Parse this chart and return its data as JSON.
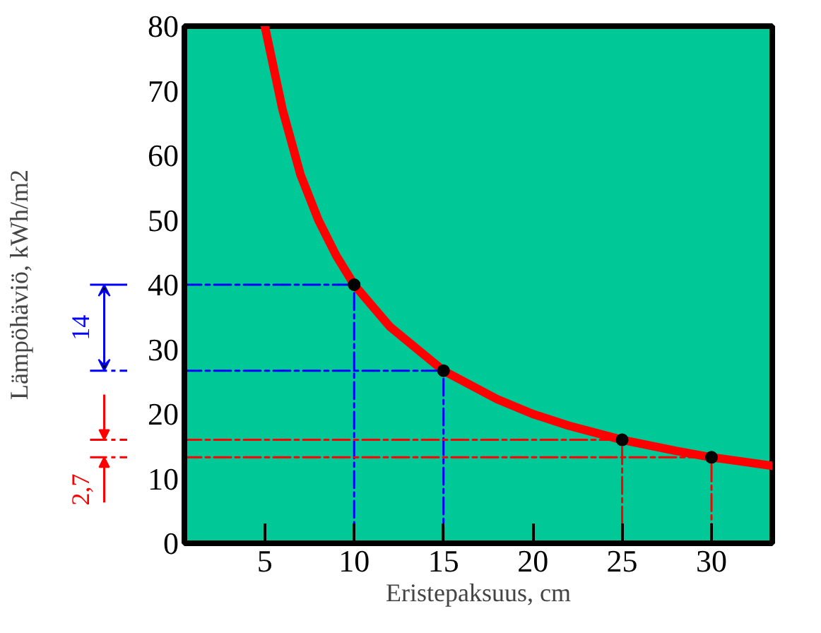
{
  "chart_data": {
    "type": "line",
    "xlabel": "Eristepaksuus, cm",
    "ylabel": "Lämpöhäviö, kWh/m2",
    "xlim": [
      0.5,
      33.4
    ],
    "ylim": [
      0,
      80
    ],
    "xticks": [
      5,
      10,
      15,
      20,
      25,
      30
    ],
    "yticks": [
      0,
      10,
      20,
      30,
      40,
      50,
      60,
      70,
      80
    ],
    "grid": false,
    "series": [
      {
        "color": "#ff0000",
        "marker": "none",
        "x": [
          5,
          6,
          7,
          8,
          9,
          10,
          12,
          15,
          18,
          20,
          22,
          25,
          28,
          30,
          33.4
        ],
        "values": [
          80,
          67,
          57,
          50,
          44.5,
          40,
          33.5,
          26.7,
          22.3,
          20,
          18.2,
          16,
          14.3,
          13.3,
          12
        ]
      },
      {
        "type": "line",
        "color": "#0000ff",
        "line_style": "dashed",
        "x": [
          0.5,
          10,
          10
        ],
        "values": [
          40,
          40,
          0
        ]
      },
      {
        "type": "line",
        "color": "#0000ff",
        "line_style": "dashed",
        "x": [
          0.5,
          15,
          15
        ],
        "values": [
          26.7,
          26.7,
          0
        ]
      },
      {
        "type": "line",
        "color": "#ff0000",
        "line_style": "dashed",
        "x": [
          0.5,
          25,
          25
        ],
        "values": [
          16,
          16,
          0
        ]
      },
      {
        "type": "line",
        "color": "#ff0000",
        "line_style": "dashed",
        "x": [
          0.5,
          30,
          30
        ],
        "values": [
          13.3,
          13.3,
          0
        ]
      },
      {
        "type": "scatter",
        "color": "#000000",
        "marker": "circle",
        "x": [
          10,
          15,
          25,
          30
        ],
        "values": [
          40,
          26.7,
          16,
          13.3
        ]
      }
    ],
    "annotations": [
      "14",
      "2,7"
    ]
  }
}
